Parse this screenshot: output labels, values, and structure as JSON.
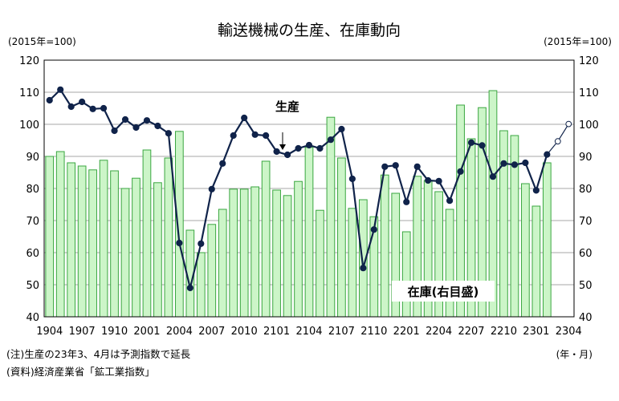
{
  "chart_data": {
    "type": "bar+line",
    "title": "輸送機械の生産、在庫動向",
    "left_unit": "(2015年=100)",
    "right_unit": "(2015年=100)",
    "xlabel_unit": "(年・月)",
    "ylim": [
      40,
      120
    ],
    "yticks": [
      "40",
      "50",
      "60",
      "70",
      "80",
      "90",
      "100",
      "110",
      "120"
    ],
    "xtick_labels": [
      "1904",
      "1907",
      "1910",
      "2001",
      "2004",
      "2007",
      "2010",
      "2101",
      "2104",
      "2107",
      "2110",
      "2201",
      "2204",
      "2207",
      "2210",
      "2301",
      "2304"
    ],
    "periods": [
      "1904",
      "1905",
      "1906",
      "1907",
      "1908",
      "1909",
      "1910",
      "1911",
      "1912",
      "2001",
      "2002",
      "2003",
      "2004",
      "2005",
      "2006",
      "2007",
      "2008",
      "2009",
      "2010",
      "2011",
      "2012",
      "2101",
      "2102",
      "2103",
      "2104",
      "2105",
      "2106",
      "2107",
      "2108",
      "2109",
      "2110",
      "2111",
      "2112",
      "2201",
      "2202",
      "2203",
      "2204",
      "2205",
      "2206",
      "2207",
      "2208",
      "2209",
      "2210",
      "2211",
      "2212",
      "2301",
      "2302",
      "2303",
      "2304"
    ],
    "series": [
      {
        "name": "在庫(右目盛)",
        "kind": "bar",
        "axis": "right",
        "values": [
          90,
          91.5,
          88,
          87,
          85.8,
          88.8,
          85.5,
          80,
          83.2,
          92,
          81.8,
          89.5,
          97.8,
          67,
          60,
          68.8,
          73.5,
          79.8,
          79.8,
          80.5,
          88.5,
          79.5,
          77.8,
          82.2,
          92.8,
          73.2,
          102.2,
          89.5,
          73.8,
          76.5,
          71.2,
          84.2,
          78.5,
          66.5,
          83.8,
          82.5,
          79,
          73.5,
          106,
          95.5,
          105.2,
          110.5,
          98,
          96.5,
          81.5,
          74.5,
          88
        ]
      },
      {
        "name": "生産",
        "kind": "line",
        "axis": "left",
        "values": [
          107.5,
          110.8,
          105.5,
          107,
          104.8,
          105,
          98,
          101.5,
          99,
          101.2,
          99.5,
          97.2,
          63,
          49,
          62.8,
          79.8,
          87.8,
          96.5,
          102,
          96.8,
          96.5,
          91.5,
          90.5,
          92.5,
          93.5,
          92.5,
          95.2,
          98.5,
          83,
          55.2,
          67.2,
          86.8,
          87.2,
          75.8,
          86.8,
          82.5,
          82.3,
          76.2,
          85.3,
          94.3,
          93.4,
          83.7,
          87.8,
          87.4,
          88,
          79.4,
          90.6,
          94.7,
          100.1
        ],
        "forecast_from": "2303"
      }
    ],
    "annotations": [
      "生産",
      "在庫(右目盛)"
    ],
    "grid": true,
    "colors": {
      "bar_fill": "#ccf5c8",
      "bar_stroke": "#3aa640",
      "line": "#10234a",
      "forecast_marker": "#ffffff"
    }
  },
  "notes": [
    "(注)生産の23年3、4月は予測指数で延長",
    "(資料)経済産業省「鉱工業指数」"
  ]
}
